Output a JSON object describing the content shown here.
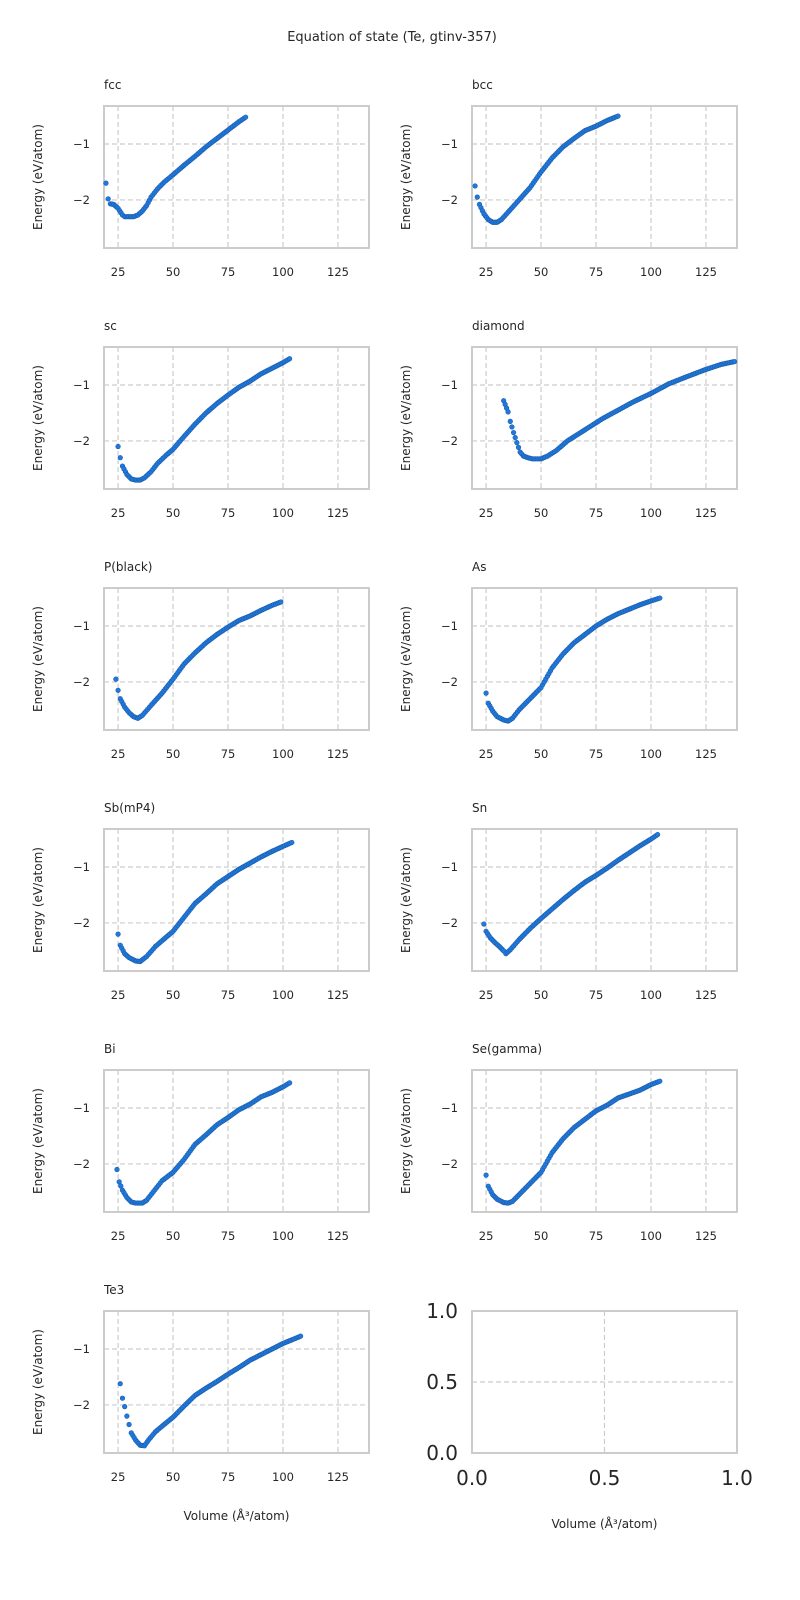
{
  "chart_data": {
    "type": "scatter",
    "title": "Equation of state (Te, gtinv-357)",
    "xlabel": "Volume (Å³/atom)",
    "ylabel": "Energy (eV/atom)",
    "xlim": [
      18.6,
      139.1
    ],
    "ylim": [
      -2.86,
      -0.32
    ],
    "xticks": [
      25,
      50,
      75,
      100,
      125
    ],
    "yticks": [
      -2,
      -1
    ],
    "grid": true,
    "marker_color": "#1f7ae0",
    "marker_edge_color": "#1c5ca8",
    "panels": [
      {
        "name": "fcc",
        "points": [
          [
            19.5,
            -1.7
          ],
          [
            20.5,
            -1.98
          ],
          [
            21.5,
            -2.07
          ],
          [
            23,
            -2.08
          ],
          [
            25,
            -2.15
          ],
          [
            27,
            -2.27
          ],
          [
            28,
            -2.3
          ],
          [
            30,
            -2.3
          ],
          [
            32,
            -2.3
          ],
          [
            34,
            -2.27
          ],
          [
            36,
            -2.2
          ],
          [
            38,
            -2.1
          ],
          [
            40,
            -1.95
          ],
          [
            43,
            -1.8
          ],
          [
            46,
            -1.68
          ],
          [
            50,
            -1.55
          ],
          [
            55,
            -1.38
          ],
          [
            60,
            -1.22
          ],
          [
            65,
            -1.05
          ],
          [
            70,
            -0.9
          ],
          [
            75,
            -0.75
          ],
          [
            80,
            -0.6
          ],
          [
            83,
            -0.52
          ]
        ]
      },
      {
        "name": "bcc",
        "points": [
          [
            20,
            -1.75
          ],
          [
            21,
            -1.95
          ],
          [
            22,
            -2.08
          ],
          [
            24,
            -2.25
          ],
          [
            26,
            -2.35
          ],
          [
            28,
            -2.4
          ],
          [
            30,
            -2.4
          ],
          [
            32,
            -2.35
          ],
          [
            35,
            -2.22
          ],
          [
            40,
            -2.0
          ],
          [
            45,
            -1.78
          ],
          [
            50,
            -1.5
          ],
          [
            55,
            -1.25
          ],
          [
            60,
            -1.05
          ],
          [
            65,
            -0.9
          ],
          [
            70,
            -0.76
          ],
          [
            75,
            -0.68
          ],
          [
            80,
            -0.58
          ],
          [
            85,
            -0.5
          ]
        ]
      },
      {
        "name": "sc",
        "points": [
          [
            25,
            -2.1
          ],
          [
            26,
            -2.3
          ],
          [
            27,
            -2.45
          ],
          [
            29,
            -2.6
          ],
          [
            31,
            -2.68
          ],
          [
            33,
            -2.7
          ],
          [
            35,
            -2.7
          ],
          [
            37,
            -2.66
          ],
          [
            40,
            -2.55
          ],
          [
            43,
            -2.4
          ],
          [
            47,
            -2.25
          ],
          [
            50,
            -2.15
          ],
          [
            55,
            -1.92
          ],
          [
            60,
            -1.7
          ],
          [
            65,
            -1.5
          ],
          [
            70,
            -1.33
          ],
          [
            75,
            -1.18
          ],
          [
            80,
            -1.04
          ],
          [
            85,
            -0.93
          ],
          [
            90,
            -0.8
          ],
          [
            95,
            -0.7
          ],
          [
            100,
            -0.6
          ],
          [
            103,
            -0.53
          ]
        ]
      },
      {
        "name": "diamond",
        "points": [
          [
            33,
            -1.28
          ],
          [
            35,
            -1.48
          ],
          [
            36,
            -1.65
          ],
          [
            37.5,
            -1.85
          ],
          [
            39,
            -2.03
          ],
          [
            40.5,
            -2.2
          ],
          [
            42,
            -2.27
          ],
          [
            44,
            -2.3
          ],
          [
            46,
            -2.32
          ],
          [
            50,
            -2.32
          ],
          [
            53,
            -2.27
          ],
          [
            57,
            -2.17
          ],
          [
            62,
            -2.0
          ],
          [
            70,
            -1.8
          ],
          [
            78,
            -1.6
          ],
          [
            85,
            -1.45
          ],
          [
            92,
            -1.3
          ],
          [
            100,
            -1.15
          ],
          [
            108,
            -0.98
          ],
          [
            115,
            -0.87
          ],
          [
            125,
            -0.72
          ],
          [
            132,
            -0.63
          ],
          [
            138,
            -0.58
          ]
        ]
      },
      {
        "name": "P(black)",
        "points": [
          [
            24,
            -1.95
          ],
          [
            25,
            -2.15
          ],
          [
            26,
            -2.3
          ],
          [
            28,
            -2.45
          ],
          [
            30,
            -2.55
          ],
          [
            32,
            -2.62
          ],
          [
            34,
            -2.65
          ],
          [
            36,
            -2.6
          ],
          [
            40,
            -2.42
          ],
          [
            45,
            -2.2
          ],
          [
            50,
            -1.95
          ],
          [
            55,
            -1.68
          ],
          [
            60,
            -1.48
          ],
          [
            65,
            -1.3
          ],
          [
            70,
            -1.15
          ],
          [
            75,
            -1.02
          ],
          [
            80,
            -0.9
          ],
          [
            85,
            -0.82
          ],
          [
            90,
            -0.72
          ],
          [
            95,
            -0.63
          ],
          [
            99,
            -0.57
          ]
        ]
      },
      {
        "name": "As",
        "points": [
          [
            25,
            -2.2
          ],
          [
            26,
            -2.38
          ],
          [
            28,
            -2.52
          ],
          [
            30,
            -2.62
          ],
          [
            33,
            -2.68
          ],
          [
            35,
            -2.7
          ],
          [
            37,
            -2.65
          ],
          [
            40,
            -2.5
          ],
          [
            45,
            -2.3
          ],
          [
            50,
            -2.1
          ],
          [
            55,
            -1.75
          ],
          [
            60,
            -1.5
          ],
          [
            65,
            -1.3
          ],
          [
            70,
            -1.15
          ],
          [
            75,
            -1.0
          ],
          [
            80,
            -0.88
          ],
          [
            85,
            -0.78
          ],
          [
            90,
            -0.7
          ],
          [
            95,
            -0.62
          ],
          [
            100,
            -0.55
          ],
          [
            104,
            -0.5
          ]
        ]
      },
      {
        "name": "Sb(mP4)",
        "points": [
          [
            25,
            -2.2
          ],
          [
            26,
            -2.4
          ],
          [
            28,
            -2.55
          ],
          [
            30,
            -2.62
          ],
          [
            33,
            -2.68
          ],
          [
            35,
            -2.69
          ],
          [
            38,
            -2.6
          ],
          [
            42,
            -2.42
          ],
          [
            47,
            -2.25
          ],
          [
            50,
            -2.15
          ],
          [
            55,
            -1.9
          ],
          [
            60,
            -1.65
          ],
          [
            65,
            -1.48
          ],
          [
            70,
            -1.3
          ],
          [
            75,
            -1.17
          ],
          [
            80,
            -1.04
          ],
          [
            85,
            -0.93
          ],
          [
            90,
            -0.82
          ],
          [
            95,
            -0.72
          ],
          [
            100,
            -0.63
          ],
          [
            104,
            -0.56
          ]
        ]
      },
      {
        "name": "Sn",
        "points": [
          [
            24,
            -2.02
          ],
          [
            25,
            -2.15
          ],
          [
            27,
            -2.27
          ],
          [
            29,
            -2.35
          ],
          [
            31,
            -2.42
          ],
          [
            33,
            -2.5
          ],
          [
            34,
            -2.55
          ],
          [
            36,
            -2.48
          ],
          [
            40,
            -2.3
          ],
          [
            45,
            -2.1
          ],
          [
            50,
            -1.92
          ],
          [
            55,
            -1.75
          ],
          [
            60,
            -1.58
          ],
          [
            65,
            -1.42
          ],
          [
            70,
            -1.27
          ],
          [
            75,
            -1.15
          ],
          [
            80,
            -1.02
          ],
          [
            85,
            -0.88
          ],
          [
            90,
            -0.75
          ],
          [
            95,
            -0.62
          ],
          [
            100,
            -0.5
          ],
          [
            103,
            -0.42
          ]
        ]
      },
      {
        "name": "Bi",
        "points": [
          [
            24.5,
            -2.1
          ],
          [
            25.5,
            -2.32
          ],
          [
            27,
            -2.47
          ],
          [
            29,
            -2.6
          ],
          [
            31,
            -2.68
          ],
          [
            33,
            -2.7
          ],
          [
            36,
            -2.7
          ],
          [
            38,
            -2.65
          ],
          [
            41,
            -2.5
          ],
          [
            45,
            -2.3
          ],
          [
            50,
            -2.15
          ],
          [
            55,
            -1.92
          ],
          [
            60,
            -1.65
          ],
          [
            65,
            -1.48
          ],
          [
            70,
            -1.3
          ],
          [
            75,
            -1.17
          ],
          [
            80,
            -1.03
          ],
          [
            85,
            -0.93
          ],
          [
            90,
            -0.8
          ],
          [
            95,
            -0.72
          ],
          [
            100,
            -0.62
          ],
          [
            103,
            -0.55
          ]
        ]
      },
      {
        "name": "Se(gamma)",
        "points": [
          [
            25,
            -2.2
          ],
          [
            26,
            -2.4
          ],
          [
            28,
            -2.55
          ],
          [
            30,
            -2.63
          ],
          [
            33,
            -2.69
          ],
          [
            35,
            -2.7
          ],
          [
            37,
            -2.67
          ],
          [
            40,
            -2.55
          ],
          [
            45,
            -2.35
          ],
          [
            50,
            -2.15
          ],
          [
            55,
            -1.8
          ],
          [
            60,
            -1.55
          ],
          [
            65,
            -1.35
          ],
          [
            70,
            -1.2
          ],
          [
            75,
            -1.05
          ],
          [
            80,
            -0.95
          ],
          [
            85,
            -0.82
          ],
          [
            90,
            -0.75
          ],
          [
            95,
            -0.68
          ],
          [
            100,
            -0.58
          ],
          [
            104,
            -0.52
          ]
        ]
      },
      {
        "name": "Te3",
        "points": [
          [
            26,
            -1.62
          ],
          [
            27,
            -1.88
          ],
          [
            28,
            -2.03
          ],
          [
            29,
            -2.2
          ],
          [
            30,
            -2.35
          ],
          [
            31,
            -2.5
          ],
          [
            33,
            -2.63
          ],
          [
            35,
            -2.72
          ],
          [
            37,
            -2.73
          ],
          [
            39,
            -2.62
          ],
          [
            42,
            -2.48
          ],
          [
            45,
            -2.38
          ],
          [
            50,
            -2.22
          ],
          [
            55,
            -2.02
          ],
          [
            60,
            -1.83
          ],
          [
            65,
            -1.7
          ],
          [
            70,
            -1.58
          ],
          [
            75,
            -1.45
          ],
          [
            80,
            -1.33
          ],
          [
            85,
            -1.2
          ],
          [
            90,
            -1.1
          ],
          [
            95,
            -1.0
          ],
          [
            100,
            -0.9
          ],
          [
            105,
            -0.82
          ],
          [
            108,
            -0.77
          ]
        ]
      }
    ],
    "empty_panel": {
      "xlim": [
        0,
        1
      ],
      "ylim": [
        0,
        1
      ],
      "xticks": [
        "0.0",
        "0.5",
        "1.0"
      ],
      "yticks": [
        "0.0",
        "0.5",
        "1.0"
      ],
      "xlabel": "Volume (Å³/atom)"
    }
  }
}
